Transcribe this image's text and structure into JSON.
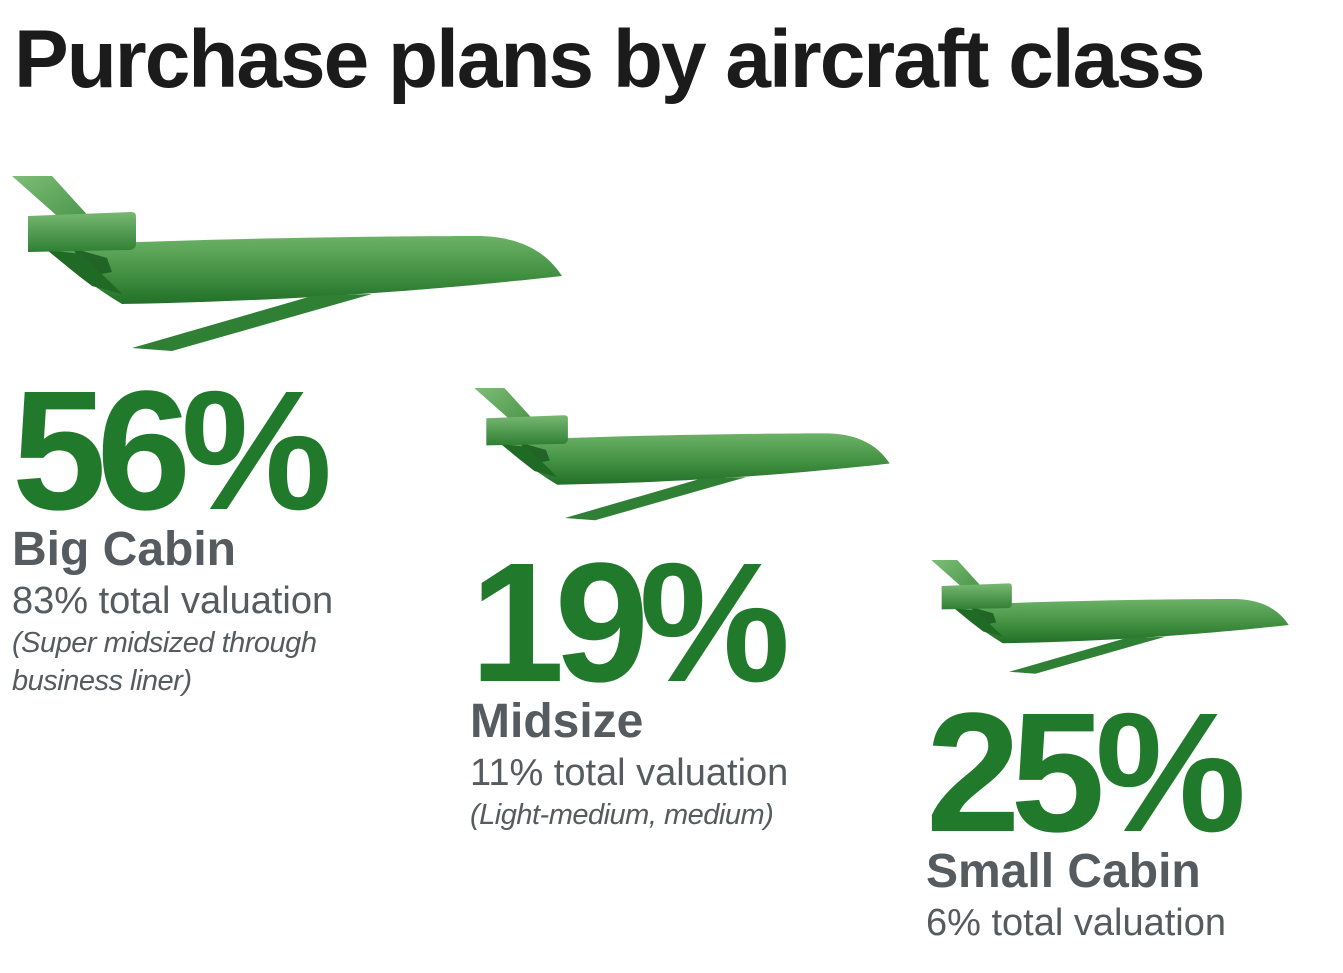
{
  "title": "Purchase plans by aircraft class",
  "colors": {
    "accent": "#217a2c",
    "plane_light": "#66ad62",
    "plane_dark": "#1d6b25",
    "text": "#555b5f",
    "title": "#1b1b1b"
  },
  "icons": {
    "plane": "airplane-icon"
  },
  "chart_data": {
    "type": "pictogram",
    "title": "Purchase plans by aircraft class",
    "unit": "%",
    "categories": [
      "Big Cabin",
      "Midsize",
      "Small Cabin"
    ],
    "values": [
      56,
      19,
      25
    ],
    "items": [
      {
        "percent": "56%",
        "label": "Big Cabin",
        "valuation": "83% total valuation",
        "note_lines": [
          "(Super midsized through",
          "business liner)"
        ]
      },
      {
        "percent": "19%",
        "label": "Midsize",
        "valuation": "11% total valuation",
        "note_lines": [
          "(Light-medium, medium)"
        ]
      },
      {
        "percent": "25%",
        "label": "Small Cabin",
        "valuation": "6% total valuation",
        "note_lines": []
      }
    ]
  }
}
